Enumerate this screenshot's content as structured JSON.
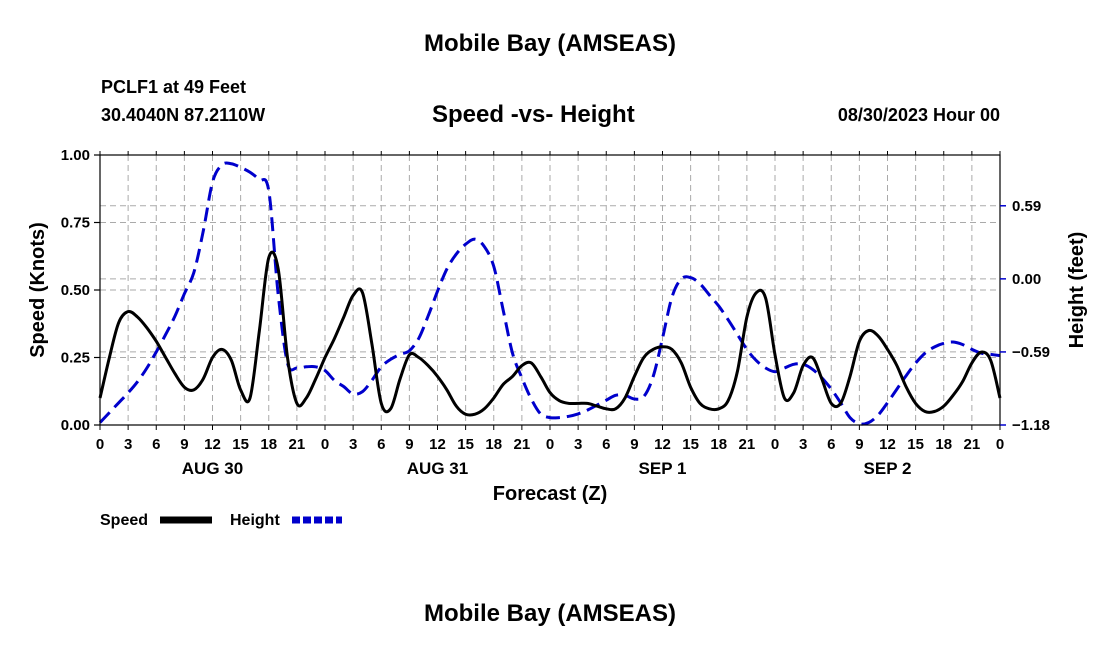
{
  "header": {
    "title": "Mobile Bay (AMSEAS)",
    "station": "PCLF1 at 49 Feet",
    "coords": "30.4040N  87.2110W",
    "forecast_time": "08/30/2023 Hour 00",
    "bottom_title": "Mobile Bay (AMSEAS)"
  },
  "colors": {
    "speed": "#000000",
    "height": "#0000cc",
    "grid": "#aaaaaa"
  },
  "chart_data": {
    "type": "line",
    "title": "Speed -vs- Height",
    "xlabel": "Forecast (Z)",
    "ylabel": "Speed (Knots)",
    "y2label": "Height (feet)",
    "ylim": [
      0,
      1.0
    ],
    "y2lim": [
      -1.18,
      1.0
    ],
    "x_range_hours": [
      0,
      96
    ],
    "left_ticks": [
      "0.00",
      "0.25",
      "0.50",
      "0.75",
      "1.00"
    ],
    "right_ticks": [
      {
        "value": 0.59,
        "label": "0.59"
      },
      {
        "value": 0.0,
        "label": "0.00"
      },
      {
        "value": -0.59,
        "label": "−0.59"
      },
      {
        "value": -1.18,
        "label": "−1.18"
      }
    ],
    "hour_ticks": [
      "0",
      "3",
      "6",
      "9",
      "12",
      "15",
      "18",
      "21",
      "0",
      "3",
      "6",
      "9",
      "12",
      "15",
      "18",
      "21",
      "0",
      "3",
      "6",
      "9",
      "12",
      "15",
      "18",
      "21",
      "0",
      "3",
      "6",
      "9",
      "12",
      "15",
      "18",
      "21",
      "0"
    ],
    "days": [
      {
        "label": "AUG 30",
        "hour": 12
      },
      {
        "label": "AUG 31",
        "hour": 36
      },
      {
        "label": "SEP 1",
        "hour": 60
      },
      {
        "label": "SEP 2",
        "hour": 84
      }
    ],
    "series": [
      {
        "name": "Speed",
        "axis": "left",
        "style": "solid",
        "x": [
          0,
          1,
          2,
          3,
          4,
          5,
          6,
          7,
          8,
          9,
          10,
          11,
          12,
          13,
          14,
          15,
          16,
          17,
          18,
          19,
          20,
          21,
          22,
          23,
          24,
          25,
          26,
          27,
          28,
          29,
          30,
          31,
          32,
          33,
          34,
          35,
          36,
          37,
          38,
          39,
          40,
          41,
          42,
          43,
          44,
          45,
          46,
          47,
          48,
          49,
          50,
          51,
          52,
          53,
          54,
          55,
          56,
          57,
          58,
          59,
          60,
          61,
          62,
          63,
          64,
          65,
          66,
          67,
          68,
          69,
          70,
          71,
          72,
          73,
          74,
          75,
          76,
          77,
          78,
          79,
          80,
          81,
          82,
          83,
          84,
          85,
          86,
          87,
          88,
          89,
          90,
          91,
          92,
          93,
          94,
          95,
          96
        ],
        "values": [
          0.1,
          0.25,
          0.38,
          0.42,
          0.4,
          0.36,
          0.31,
          0.25,
          0.19,
          0.14,
          0.13,
          0.17,
          0.25,
          0.28,
          0.24,
          0.13,
          0.1,
          0.35,
          0.62,
          0.58,
          0.25,
          0.08,
          0.1,
          0.17,
          0.25,
          0.32,
          0.4,
          0.48,
          0.49,
          0.3,
          0.08,
          0.06,
          0.17,
          0.26,
          0.25,
          0.22,
          0.18,
          0.13,
          0.07,
          0.04,
          0.04,
          0.06,
          0.1,
          0.15,
          0.18,
          0.22,
          0.23,
          0.18,
          0.12,
          0.09,
          0.08,
          0.08,
          0.08,
          0.07,
          0.06,
          0.06,
          0.1,
          0.18,
          0.25,
          0.28,
          0.29,
          0.28,
          0.23,
          0.14,
          0.08,
          0.06,
          0.06,
          0.09,
          0.2,
          0.4,
          0.49,
          0.47,
          0.26,
          0.1,
          0.12,
          0.22,
          0.25,
          0.17,
          0.08,
          0.08,
          0.18,
          0.31,
          0.35,
          0.33,
          0.28,
          0.22,
          0.14,
          0.08,
          0.05,
          0.05,
          0.07,
          0.11,
          0.16,
          0.23,
          0.27,
          0.24,
          0.1
        ]
      },
      {
        "name": "Height",
        "axis": "right",
        "style": "dashed",
        "x": [
          0,
          1,
          2,
          3,
          4,
          5,
          6,
          7,
          8,
          9,
          10,
          11,
          12,
          13,
          14,
          15,
          16,
          17,
          18,
          19,
          20,
          21,
          22,
          23,
          24,
          25,
          26,
          27,
          28,
          29,
          30,
          31,
          32,
          33,
          34,
          35,
          36,
          37,
          38,
          39,
          40,
          41,
          42,
          43,
          44,
          45,
          46,
          47,
          48,
          49,
          50,
          51,
          52,
          53,
          54,
          55,
          56,
          57,
          58,
          59,
          60,
          61,
          62,
          63,
          64,
          65,
          66,
          67,
          68,
          69,
          70,
          71,
          72,
          73,
          74,
          75,
          76,
          77,
          78,
          79,
          80,
          81,
          82,
          83,
          84,
          85,
          86,
          87,
          88,
          89,
          90,
          91,
          92,
          93,
          94,
          95,
          96
        ],
        "values": [
          -1.16,
          -1.08,
          -1.0,
          -0.92,
          -0.83,
          -0.72,
          -0.59,
          -0.45,
          -0.3,
          -0.12,
          0.05,
          0.38,
          0.78,
          0.92,
          0.93,
          0.9,
          0.86,
          0.8,
          0.71,
          -0.12,
          -0.68,
          -0.72,
          -0.71,
          -0.71,
          -0.74,
          -0.82,
          -0.87,
          -0.93,
          -0.91,
          -0.82,
          -0.71,
          -0.65,
          -0.61,
          -0.58,
          -0.48,
          -0.3,
          -0.1,
          0.08,
          0.2,
          0.28,
          0.32,
          0.26,
          0.1,
          -0.25,
          -0.6,
          -0.8,
          -0.97,
          -1.09,
          -1.12,
          -1.12,
          -1.11,
          -1.09,
          -1.06,
          -1.02,
          -0.98,
          -0.94,
          -0.94,
          -0.97,
          -0.95,
          -0.79,
          -0.48,
          -0.15,
          0.0,
          0.01,
          -0.04,
          -0.13,
          -0.22,
          -0.33,
          -0.45,
          -0.57,
          -0.66,
          -0.72,
          -0.75,
          -0.72,
          -0.69,
          -0.69,
          -0.73,
          -0.8,
          -0.89,
          -1.0,
          -1.12,
          -1.17,
          -1.16,
          -1.1,
          -1.0,
          -0.89,
          -0.78,
          -0.68,
          -0.6,
          -0.55,
          -0.52,
          -0.51,
          -0.53,
          -0.57,
          -0.6,
          -0.61,
          -0.62
        ]
      }
    ]
  }
}
